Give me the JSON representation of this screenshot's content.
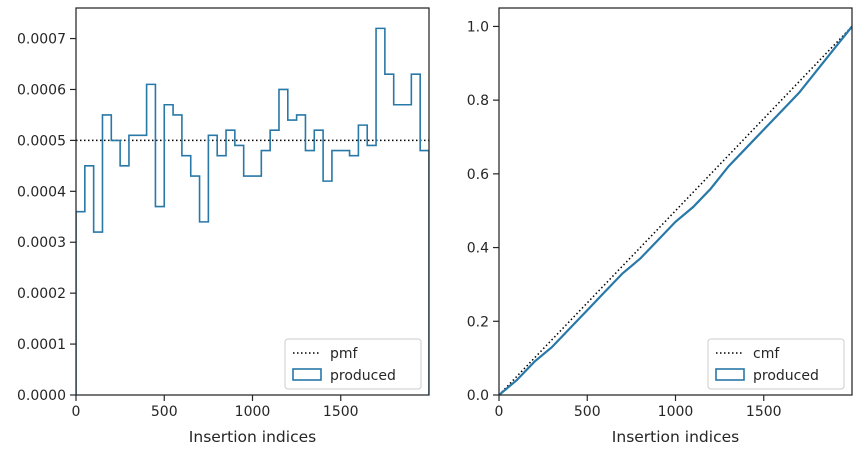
{
  "chart_data": [
    {
      "type": "histogram-step",
      "xlabel": "Insertion indices",
      "ylabel": "",
      "xlim": [
        0,
        2000
      ],
      "ylim": [
        0,
        0.00076
      ],
      "xticks": [
        0,
        500,
        1000,
        1500
      ],
      "xtick_labels": [
        "0",
        "500",
        "1000",
        "1500"
      ],
      "yticks": [
        0,
        0.0001,
        0.0002,
        0.0003,
        0.0004,
        0.0005,
        0.0006,
        0.0007
      ],
      "ytick_labels": [
        "0.0000",
        "0.0001",
        "0.0002",
        "0.0003",
        "0.0004",
        "0.0005",
        "0.0006",
        "0.0007"
      ],
      "bin_width": 50,
      "series": [
        {
          "name": "produced",
          "bin_starts": [
            0,
            50,
            100,
            150,
            200,
            250,
            300,
            350,
            400,
            450,
            500,
            550,
            600,
            650,
            700,
            750,
            800,
            850,
            900,
            950,
            1000,
            1050,
            1100,
            1150,
            1200,
            1250,
            1300,
            1350,
            1400,
            1450,
            1500,
            1550,
            1600,
            1650,
            1700,
            1750,
            1800,
            1850,
            1900,
            1950
          ],
          "values": [
            0.00036,
            0.00045,
            0.00032,
            0.00055,
            0.0005,
            0.00045,
            0.00051,
            0.00051,
            0.00061,
            0.00037,
            0.00057,
            0.00055,
            0.00047,
            0.00043,
            0.00034,
            0.00051,
            0.00047,
            0.00052,
            0.00049,
            0.00043,
            0.00043,
            0.00048,
            0.00052,
            0.0006,
            0.00054,
            0.00055,
            0.00048,
            0.00052,
            0.00042,
            0.00048,
            0.00048,
            0.00047,
            0.00053,
            0.00049,
            0.00072,
            0.00063,
            0.00057,
            0.00057,
            0.00063,
            0.00048
          ],
          "color": "#2878a8"
        },
        {
          "name": "pmf",
          "constant": 0.0005,
          "style": "dotted",
          "color": "#000000"
        }
      ],
      "legend": {
        "placement": "lower-right",
        "entries": [
          "pmf",
          "produced"
        ]
      }
    },
    {
      "type": "line",
      "xlabel": "Insertion indices",
      "ylabel": "",
      "xlim": [
        0,
        2000
      ],
      "ylim": [
        0,
        1.05
      ],
      "xticks": [
        0,
        500,
        1000,
        1500
      ],
      "xtick_labels": [
        "0",
        "500",
        "1000",
        "1500"
      ],
      "yticks": [
        0,
        0.2,
        0.4,
        0.6,
        0.8,
        1.0
      ],
      "ytick_labels": [
        "0.0",
        "0.2",
        "0.4",
        "0.6",
        "0.8",
        "1.0"
      ],
      "series": [
        {
          "name": "cmf",
          "x": [
            0,
            2000
          ],
          "y": [
            0,
            1.0
          ],
          "style": "dotted",
          "color": "#000000"
        },
        {
          "name": "produced",
          "x": [
            0,
            100,
            200,
            300,
            400,
            500,
            600,
            700,
            800,
            900,
            1000,
            1100,
            1200,
            1300,
            1400,
            1500,
            1600,
            1700,
            1800,
            1900,
            2000
          ],
          "y": [
            0,
            0.04,
            0.09,
            0.13,
            0.18,
            0.23,
            0.28,
            0.33,
            0.37,
            0.42,
            0.47,
            0.51,
            0.56,
            0.62,
            0.67,
            0.72,
            0.77,
            0.82,
            0.88,
            0.94,
            1.0
          ],
          "color": "#2878a8"
        }
      ],
      "legend": {
        "placement": "lower-right",
        "entries": [
          "cmf",
          "produced"
        ]
      }
    }
  ]
}
